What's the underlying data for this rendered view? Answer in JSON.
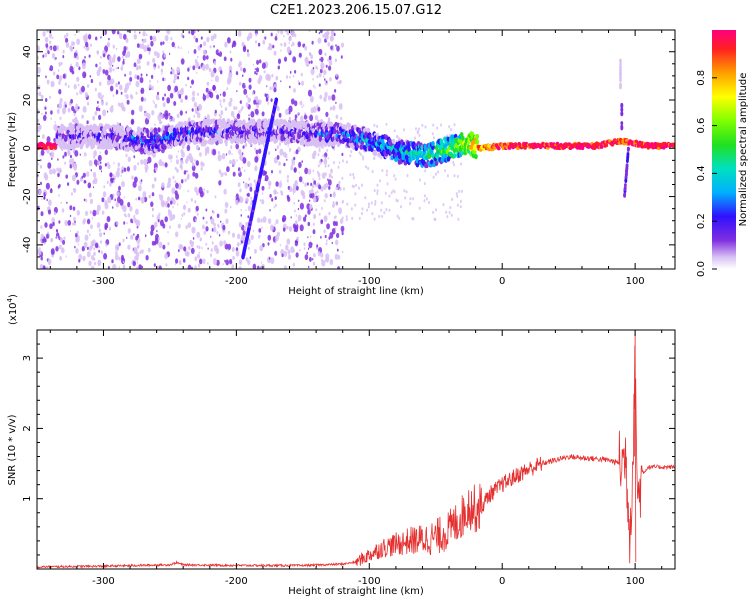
{
  "title": "C2E1.2023.206.15.07.G12",
  "chart_data": [
    {
      "type": "heatmap",
      "xlabel": "Height of straight line (km)",
      "ylabel": "Frequency (Hz)",
      "xlim": [
        -350,
        130
      ],
      "ylim": [
        -50,
        49
      ],
      "xticks": [
        -300,
        -200,
        -100,
        0,
        100
      ],
      "yticks": [
        -40,
        -20,
        0,
        20,
        40
      ],
      "colorbar": {
        "label": "Normalized spectral amplitude",
        "range": [
          0,
          1
        ],
        "ticks": [
          "0.0",
          "0.2",
          "0.4",
          "0.6",
          "0.8"
        ],
        "colors": [
          "#ffffff",
          "#d8c0f4",
          "#8030e0",
          "#3010ff",
          "#00b0ff",
          "#00e0c0",
          "#20e020",
          "#80ff00",
          "#ffff00",
          "#ffa000",
          "#ff2020",
          "#ff0080"
        ]
      },
      "ridge": [
        {
          "x": -335,
          "f": 5,
          "amp": 0.15
        },
        {
          "x": -300,
          "f": 5,
          "amp": 0.2
        },
        {
          "x": -265,
          "f": 3,
          "amp": 0.3
        },
        {
          "x": -250,
          "f": 5,
          "amp": 0.3
        },
        {
          "x": -230,
          "f": 7,
          "amp": 0.25
        },
        {
          "x": -200,
          "f": 7,
          "amp": 0.2
        },
        {
          "x": -170,
          "f": 7,
          "amp": 0.2
        },
        {
          "x": -140,
          "f": 6,
          "amp": 0.25
        },
        {
          "x": -120,
          "f": 6,
          "amp": 0.3
        },
        {
          "x": -100,
          "f": 3,
          "amp": 0.35
        },
        {
          "x": -80,
          "f": -1,
          "amp": 0.4
        },
        {
          "x": -70,
          "f": -2,
          "amp": 0.45
        },
        {
          "x": -55,
          "f": -3,
          "amp": 0.5
        },
        {
          "x": -40,
          "f": 0,
          "amp": 0.55
        },
        {
          "x": -25,
          "f": 2,
          "amp": 0.7
        },
        {
          "x": -15,
          "f": 0,
          "amp": 0.85
        },
        {
          "x": 0,
          "f": 1,
          "amp": 0.95
        },
        {
          "x": 40,
          "f": 1,
          "amp": 1.0
        },
        {
          "x": 70,
          "f": 1,
          "amp": 1.0
        },
        {
          "x": 90,
          "f": 3,
          "amp": 0.95
        },
        {
          "x": 110,
          "f": 1,
          "amp": 1.0
        },
        {
          "x": 130,
          "f": 1,
          "amp": 1.0
        }
      ],
      "streak": [
        {
          "x": -195,
          "f": -45
        },
        {
          "x": -170,
          "f": 20
        }
      ]
    },
    {
      "type": "line",
      "xlabel": "Height of straight line (km)",
      "ylabel": "SNR (10 * v/v)",
      "scale_label": "(x10^4)",
      "scale_base": "x10",
      "scale_exp": "4",
      "xlim": [
        -350,
        130
      ],
      "ylim": [
        0,
        3.4
      ],
      "xticks": [
        -300,
        -200,
        -100,
        0,
        100
      ],
      "yticks": [
        1,
        2,
        3
      ],
      "line_color": "#e53030",
      "series": [
        {
          "x": [
            -350,
            -300,
            -250,
            -245,
            -240,
            -200,
            -150,
            -120,
            -110,
            -100,
            -90,
            -80,
            -70,
            -60,
            -50,
            -40,
            -30,
            -25,
            -20,
            -15,
            -10,
            0,
            10,
            20,
            30,
            40,
            50,
            60,
            70,
            80,
            85,
            90,
            93,
            96,
            98,
            100,
            102,
            105,
            110,
            120,
            130
          ],
          "y": [
            0.03,
            0.04,
            0.06,
            0.09,
            0.06,
            0.05,
            0.05,
            0.07,
            0.1,
            0.2,
            0.3,
            0.35,
            0.4,
            0.42,
            0.45,
            0.55,
            0.75,
            0.9,
            0.85,
            0.9,
            1.05,
            1.2,
            1.32,
            1.42,
            1.5,
            1.55,
            1.6,
            1.58,
            1.57,
            1.55,
            1.52,
            1.5,
            1.6,
            0.5,
            1.4,
            2.9,
            0.9,
            1.35,
            1.45,
            1.45,
            1.45
          ]
        }
      ]
    }
  ]
}
